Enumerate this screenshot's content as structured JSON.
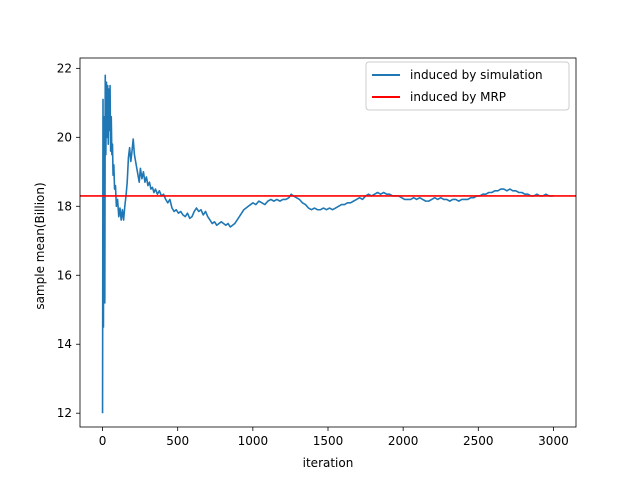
{
  "chart_data": {
    "type": "line",
    "title": "",
    "xlabel": "iteration",
    "ylabel": "sample mean(Billion)",
    "xlim": [
      -150,
      3150
    ],
    "ylim": [
      11.6,
      22.3
    ],
    "xticks": [
      0,
      500,
      1000,
      1500,
      2000,
      2500,
      3000
    ],
    "yticks": [
      12,
      14,
      16,
      18,
      20,
      22
    ],
    "grid": false,
    "legend_position": "upper right",
    "series": [
      {
        "name": "induced by simulation",
        "color": "#1f77b4",
        "kind": "line",
        "points": [
          [
            0,
            12.0
          ],
          [
            3,
            21.1
          ],
          [
            6,
            14.5
          ],
          [
            9,
            20.6
          ],
          [
            12,
            16.4
          ],
          [
            15,
            15.2
          ],
          [
            18,
            21.8
          ],
          [
            22,
            19.5
          ],
          [
            26,
            21.6
          ],
          [
            30,
            20.0
          ],
          [
            34,
            21.5
          ],
          [
            38,
            19.8
          ],
          [
            42,
            21.4
          ],
          [
            46,
            20.2
          ],
          [
            50,
            21.5
          ],
          [
            54,
            19.6
          ],
          [
            58,
            20.6
          ],
          [
            62,
            19.5
          ],
          [
            66,
            19.8
          ],
          [
            70,
            18.9
          ],
          [
            75,
            19.2
          ],
          [
            80,
            18.5
          ],
          [
            86,
            18.6
          ],
          [
            92,
            18.0
          ],
          [
            100,
            18.2
          ],
          [
            108,
            17.7
          ],
          [
            116,
            17.95
          ],
          [
            124,
            17.6
          ],
          [
            132,
            17.9
          ],
          [
            140,
            17.6
          ],
          [
            148,
            18.0
          ],
          [
            156,
            18.3
          ],
          [
            164,
            18.7
          ],
          [
            172,
            19.4
          ],
          [
            180,
            19.7
          ],
          [
            188,
            19.3
          ],
          [
            196,
            19.6
          ],
          [
            204,
            19.95
          ],
          [
            212,
            19.5
          ],
          [
            220,
            19.3
          ],
          [
            228,
            19.1
          ],
          [
            236,
            18.9
          ],
          [
            244,
            18.7
          ],
          [
            252,
            19.1
          ],
          [
            262,
            18.8
          ],
          [
            272,
            19.0
          ],
          [
            282,
            18.7
          ],
          [
            292,
            18.85
          ],
          [
            302,
            18.6
          ],
          [
            312,
            18.7
          ],
          [
            322,
            18.5
          ],
          [
            332,
            18.55
          ],
          [
            342,
            18.4
          ],
          [
            352,
            18.5
          ],
          [
            365,
            18.35
          ],
          [
            378,
            18.45
          ],
          [
            392,
            18.3
          ],
          [
            406,
            18.35
          ],
          [
            420,
            18.2
          ],
          [
            434,
            18.1
          ],
          [
            448,
            18.2
          ],
          [
            462,
            17.95
          ],
          [
            476,
            17.85
          ],
          [
            490,
            17.9
          ],
          [
            505,
            17.8
          ],
          [
            520,
            17.85
          ],
          [
            535,
            17.75
          ],
          [
            550,
            17.7
          ],
          [
            565,
            17.8
          ],
          [
            580,
            17.65
          ],
          [
            595,
            17.7
          ],
          [
            610,
            17.85
          ],
          [
            625,
            17.95
          ],
          [
            640,
            17.85
          ],
          [
            655,
            17.9
          ],
          [
            670,
            17.75
          ],
          [
            685,
            17.85
          ],
          [
            700,
            17.7
          ],
          [
            715,
            17.6
          ],
          [
            730,
            17.5
          ],
          [
            745,
            17.55
          ],
          [
            760,
            17.45
          ],
          [
            775,
            17.5
          ],
          [
            790,
            17.55
          ],
          [
            805,
            17.5
          ],
          [
            820,
            17.45
          ],
          [
            835,
            17.5
          ],
          [
            850,
            17.4
          ],
          [
            865,
            17.45
          ],
          [
            880,
            17.5
          ],
          [
            895,
            17.6
          ],
          [
            910,
            17.7
          ],
          [
            925,
            17.8
          ],
          [
            940,
            17.9
          ],
          [
            955,
            17.95
          ],
          [
            970,
            18.0
          ],
          [
            985,
            18.05
          ],
          [
            1000,
            18.1
          ],
          [
            1020,
            18.05
          ],
          [
            1040,
            18.15
          ],
          [
            1060,
            18.1
          ],
          [
            1080,
            18.05
          ],
          [
            1100,
            18.15
          ],
          [
            1120,
            18.2
          ],
          [
            1140,
            18.15
          ],
          [
            1160,
            18.2
          ],
          [
            1180,
            18.15
          ],
          [
            1200,
            18.2
          ],
          [
            1220,
            18.2
          ],
          [
            1240,
            18.25
          ],
          [
            1255,
            18.35
          ],
          [
            1270,
            18.3
          ],
          [
            1290,
            18.25
          ],
          [
            1310,
            18.2
          ],
          [
            1330,
            18.1
          ],
          [
            1350,
            18.05
          ],
          [
            1370,
            17.95
          ],
          [
            1390,
            17.9
          ],
          [
            1410,
            17.95
          ],
          [
            1430,
            17.9
          ],
          [
            1450,
            17.9
          ],
          [
            1470,
            17.95
          ],
          [
            1490,
            17.9
          ],
          [
            1510,
            17.95
          ],
          [
            1530,
            17.9
          ],
          [
            1550,
            17.95
          ],
          [
            1570,
            18.0
          ],
          [
            1590,
            18.05
          ],
          [
            1610,
            18.05
          ],
          [
            1630,
            18.1
          ],
          [
            1650,
            18.1
          ],
          [
            1670,
            18.15
          ],
          [
            1690,
            18.2
          ],
          [
            1710,
            18.25
          ],
          [
            1730,
            18.2
          ],
          [
            1750,
            18.3
          ],
          [
            1770,
            18.35
          ],
          [
            1790,
            18.3
          ],
          [
            1810,
            18.35
          ],
          [
            1830,
            18.4
          ],
          [
            1850,
            18.35
          ],
          [
            1870,
            18.4
          ],
          [
            1890,
            18.35
          ],
          [
            1910,
            18.35
          ],
          [
            1930,
            18.3
          ],
          [
            1950,
            18.3
          ],
          [
            1970,
            18.3
          ],
          [
            1990,
            18.25
          ],
          [
            2010,
            18.2
          ],
          [
            2030,
            18.2
          ],
          [
            2050,
            18.2
          ],
          [
            2070,
            18.25
          ],
          [
            2090,
            18.2
          ],
          [
            2110,
            18.25
          ],
          [
            2130,
            18.2
          ],
          [
            2150,
            18.15
          ],
          [
            2170,
            18.15
          ],
          [
            2190,
            18.2
          ],
          [
            2210,
            18.25
          ],
          [
            2230,
            18.2
          ],
          [
            2250,
            18.25
          ],
          [
            2270,
            18.2
          ],
          [
            2290,
            18.2
          ],
          [
            2310,
            18.15
          ],
          [
            2330,
            18.2
          ],
          [
            2350,
            18.2
          ],
          [
            2370,
            18.15
          ],
          [
            2390,
            18.2
          ],
          [
            2410,
            18.2
          ],
          [
            2430,
            18.2
          ],
          [
            2450,
            18.25
          ],
          [
            2470,
            18.25
          ],
          [
            2490,
            18.3
          ],
          [
            2510,
            18.3
          ],
          [
            2530,
            18.35
          ],
          [
            2550,
            18.35
          ],
          [
            2570,
            18.4
          ],
          [
            2590,
            18.4
          ],
          [
            2610,
            18.45
          ],
          [
            2630,
            18.45
          ],
          [
            2650,
            18.5
          ],
          [
            2670,
            18.5
          ],
          [
            2690,
            18.45
          ],
          [
            2710,
            18.5
          ],
          [
            2730,
            18.45
          ],
          [
            2750,
            18.45
          ],
          [
            2770,
            18.4
          ],
          [
            2790,
            18.4
          ],
          [
            2810,
            18.35
          ],
          [
            2830,
            18.35
          ],
          [
            2850,
            18.3
          ],
          [
            2870,
            18.3
          ],
          [
            2890,
            18.35
          ],
          [
            2910,
            18.3
          ],
          [
            2930,
            18.3
          ],
          [
            2950,
            18.35
          ],
          [
            2970,
            18.3
          ],
          [
            2990,
            18.3
          ],
          [
            3000,
            18.3
          ]
        ]
      },
      {
        "name": "induced by MRP",
        "color": "#ff0000",
        "kind": "hline",
        "value": 18.3
      }
    ]
  }
}
